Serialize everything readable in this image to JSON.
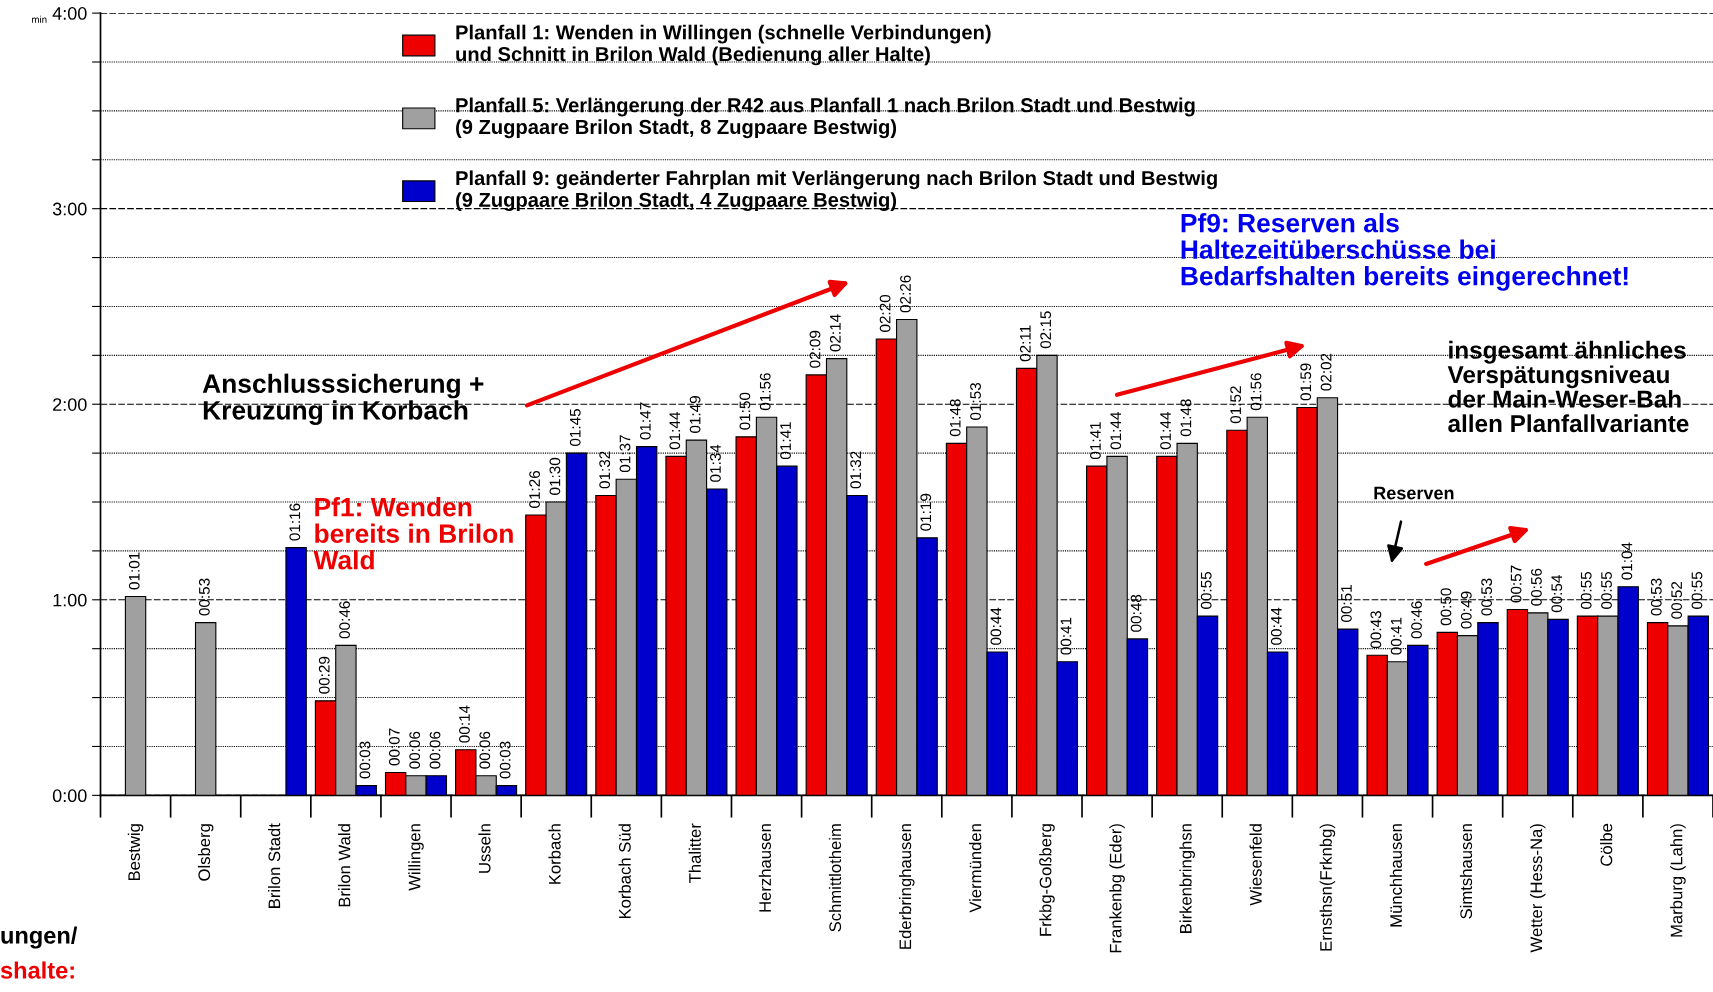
{
  "chart_data": {
    "type": "bar",
    "ylabel": "min",
    "categories": [
      "Bestwig",
      "Olsberg",
      "Brilon Stadt",
      "Brilon Wald",
      "Willingen",
      "Usseln",
      "Korbach",
      "Korbach Süd",
      "Thalitter",
      "Herzhausen",
      "Schmittlotheim",
      "Ederbringhausen",
      "Viermünden",
      "Frkbg-Goßberg",
      "Frankenbg (Eder)",
      "Birkenbringhsn",
      "Wiesenfeld",
      "Ernsthsn(Frknbg)",
      "Münchhausen",
      "Simtshausen",
      "Wetter (Hess-Na)",
      "Cölbe",
      "Marburg (Lahn)"
    ],
    "series": [
      {
        "name": "Planfall 1: Wenden in Willingen (schnelle Verbindungen)\nund Schnitt in Brilon Wald (Bedienung aller Halte)",
        "color": "#ee0000",
        "values": [
          null,
          null,
          null,
          29,
          7,
          14,
          86,
          92,
          104,
          110,
          129,
          140,
          108,
          131,
          101,
          104,
          112,
          119,
          43,
          50,
          57,
          55,
          53
        ],
        "value_labels": [
          null,
          null,
          null,
          "00:29",
          "00:07",
          "00:14",
          "01:26",
          "01:32",
          "01:44",
          "01:50",
          "02:09",
          "02:20",
          "01:48",
          "02:11",
          "01:41",
          "01:44",
          "01:52",
          "01:59",
          "00:43",
          "00:50",
          "00:57",
          "00:55",
          "00:53"
        ]
      },
      {
        "name": "Planfall 5: Verlängerung der R42 aus Planfall 1 nach Brilon Stadt und Bestwig\n(9 Zugpaare Brilon Stadt, 8 Zugpaare Bestwig)",
        "color": "#a0a0a0",
        "values": [
          61,
          53,
          null,
          46,
          6,
          6,
          90,
          97,
          109,
          116,
          134,
          146,
          113,
          135,
          104,
          108,
          116,
          122,
          41,
          49,
          56,
          55,
          52
        ],
        "value_labels": [
          "01:01",
          "00:53",
          null,
          "00:46",
          "00:06",
          "00:06",
          "01:30",
          "01:37",
          "01:49",
          "01:56",
          "02:14",
          "02:26",
          "01:53",
          "02:15",
          "01:44",
          "01:48",
          "01:56",
          "02:02",
          "00:41",
          "00:49",
          "00:56",
          "00:55",
          "00:52"
        ]
      },
      {
        "name": "Planfall 9: geänderter Fahrplan mit Verlängerung nach Brilon Stadt und Bestwig\n(9 Zugpaare Brilon Stadt, 4 Zugpaare Bestwig)",
        "color": "#0000cc",
        "values": [
          null,
          null,
          76,
          3,
          6,
          3,
          105,
          107,
          94,
          101,
          92,
          79,
          44,
          41,
          48,
          55,
          44,
          51,
          46,
          53,
          54,
          64,
          55
        ],
        "value_labels": [
          null,
          null,
          "01:16",
          "00:03",
          "00:06",
          "00:03",
          "01:45",
          "01:47",
          "01:34",
          "01:41",
          "01:32",
          "01:19",
          "00:44",
          "00:41",
          "00:48",
          "00:55",
          "00:44",
          "00:51",
          "00:46",
          "00:53",
          "00:54",
          "01:04",
          "00:55"
        ]
      }
    ],
    "ylim": [
      0,
      240
    ],
    "yticks": [
      {
        "value": 0,
        "label": "0:00"
      },
      {
        "value": 15,
        "label": null
      },
      {
        "value": 30,
        "label": null
      },
      {
        "value": 45,
        "label": null
      },
      {
        "value": 60,
        "label": "1:00"
      },
      {
        "value": 75,
        "label": null
      },
      {
        "value": 90,
        "label": null
      },
      {
        "value": 105,
        "label": null
      },
      {
        "value": 120,
        "label": "2:00"
      },
      {
        "value": 135,
        "label": null
      },
      {
        "value": 150,
        "label": null
      },
      {
        "value": 165,
        "label": null
      },
      {
        "value": 180,
        "label": "3:00"
      },
      {
        "value": 195,
        "label": null
      },
      {
        "value": 210,
        "label": null
      },
      {
        "value": 225,
        "label": null
      },
      {
        "value": 240,
        "label": "4:00"
      }
    ],
    "grid": "y",
    "legend": "top",
    "annotations": [
      "Anschlusssicherung +\nKreuzung in Korbach",
      "Pf1: Wenden\nbereits in Brilon\nWald",
      "Pf9: Reserven als\nHaltezeitüberschüsse bei\nBedarfshalten bereits eingerechnet!",
      "insgesamt ähnliches\nVerspätungsniveau\nder Main-Weser-Bah\nallen Planfallvariante",
      "Reserven",
      "ungen/",
      "shalte:"
    ]
  }
}
